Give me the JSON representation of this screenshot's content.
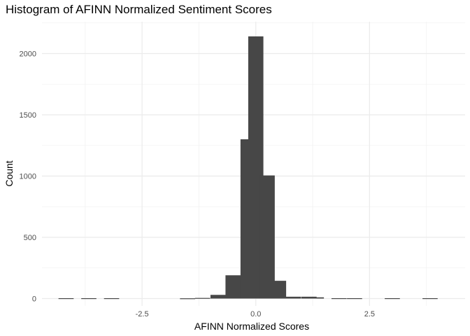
{
  "chart_data": {
    "type": "bar",
    "title": "Histogram of AFINN Normalized Sentiment Scores",
    "xlabel": "AFINN Normalized Scores",
    "ylabel": "Count",
    "xlim": [
      -4.7,
      4.6
    ],
    "ylim": [
      -60,
      2260
    ],
    "grid": true,
    "x_ticks": [
      -2.5,
      0.0,
      2.5
    ],
    "x_tick_labels": [
      "-2.5",
      "0.0",
      "2.5"
    ],
    "y_ticks": [
      0,
      500,
      1000,
      1500,
      2000
    ],
    "y_tick_labels": [
      "0",
      "500",
      "1000",
      "1500",
      "2000"
    ],
    "bin_width": 0.333,
    "bins": [
      {
        "x": -4.17,
        "count": 3
      },
      {
        "x": -3.67,
        "count": 3
      },
      {
        "x": -3.17,
        "count": 3
      },
      {
        "x": -1.5,
        "count": 2
      },
      {
        "x": -1.17,
        "count": 5
      },
      {
        "x": -0.83,
        "count": 30
      },
      {
        "x": -0.5,
        "count": 190
      },
      {
        "x": -0.17,
        "count": 1300
      },
      {
        "x": 0.0,
        "count": 2140
      },
      {
        "x": 0.25,
        "count": 1005
      },
      {
        "x": 0.5,
        "count": 145
      },
      {
        "x": 0.83,
        "count": 15
      },
      {
        "x": 1.17,
        "count": 15
      },
      {
        "x": 1.33,
        "count": 10
      },
      {
        "x": 1.83,
        "count": 3
      },
      {
        "x": 2.17,
        "count": 3
      },
      {
        "x": 3.0,
        "count": 3
      },
      {
        "x": 3.83,
        "count": 3
      }
    ]
  }
}
